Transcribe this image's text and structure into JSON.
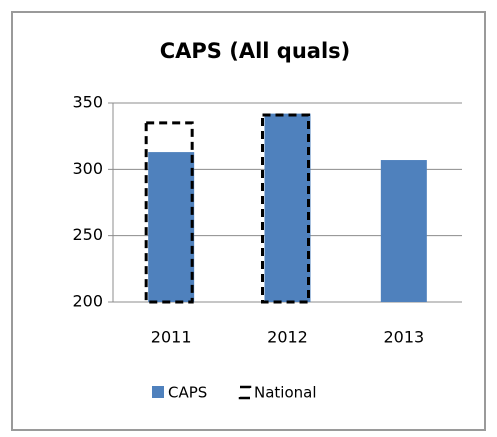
{
  "chart_data": {
    "type": "bar",
    "title": "CAPS (All quals)",
    "categories": [
      "2011",
      "2012",
      "2013"
    ],
    "series": [
      {
        "name": "CAPS",
        "color": "#4f81bd",
        "values": [
          313,
          342,
          307
        ]
      },
      {
        "name": "National",
        "color": "#000000",
        "values": [
          335,
          341,
          null
        ]
      }
    ],
    "ylim": [
      200,
      350
    ],
    "yticks": [
      200,
      250,
      300,
      350
    ],
    "grid": true,
    "legend": "bottom"
  }
}
